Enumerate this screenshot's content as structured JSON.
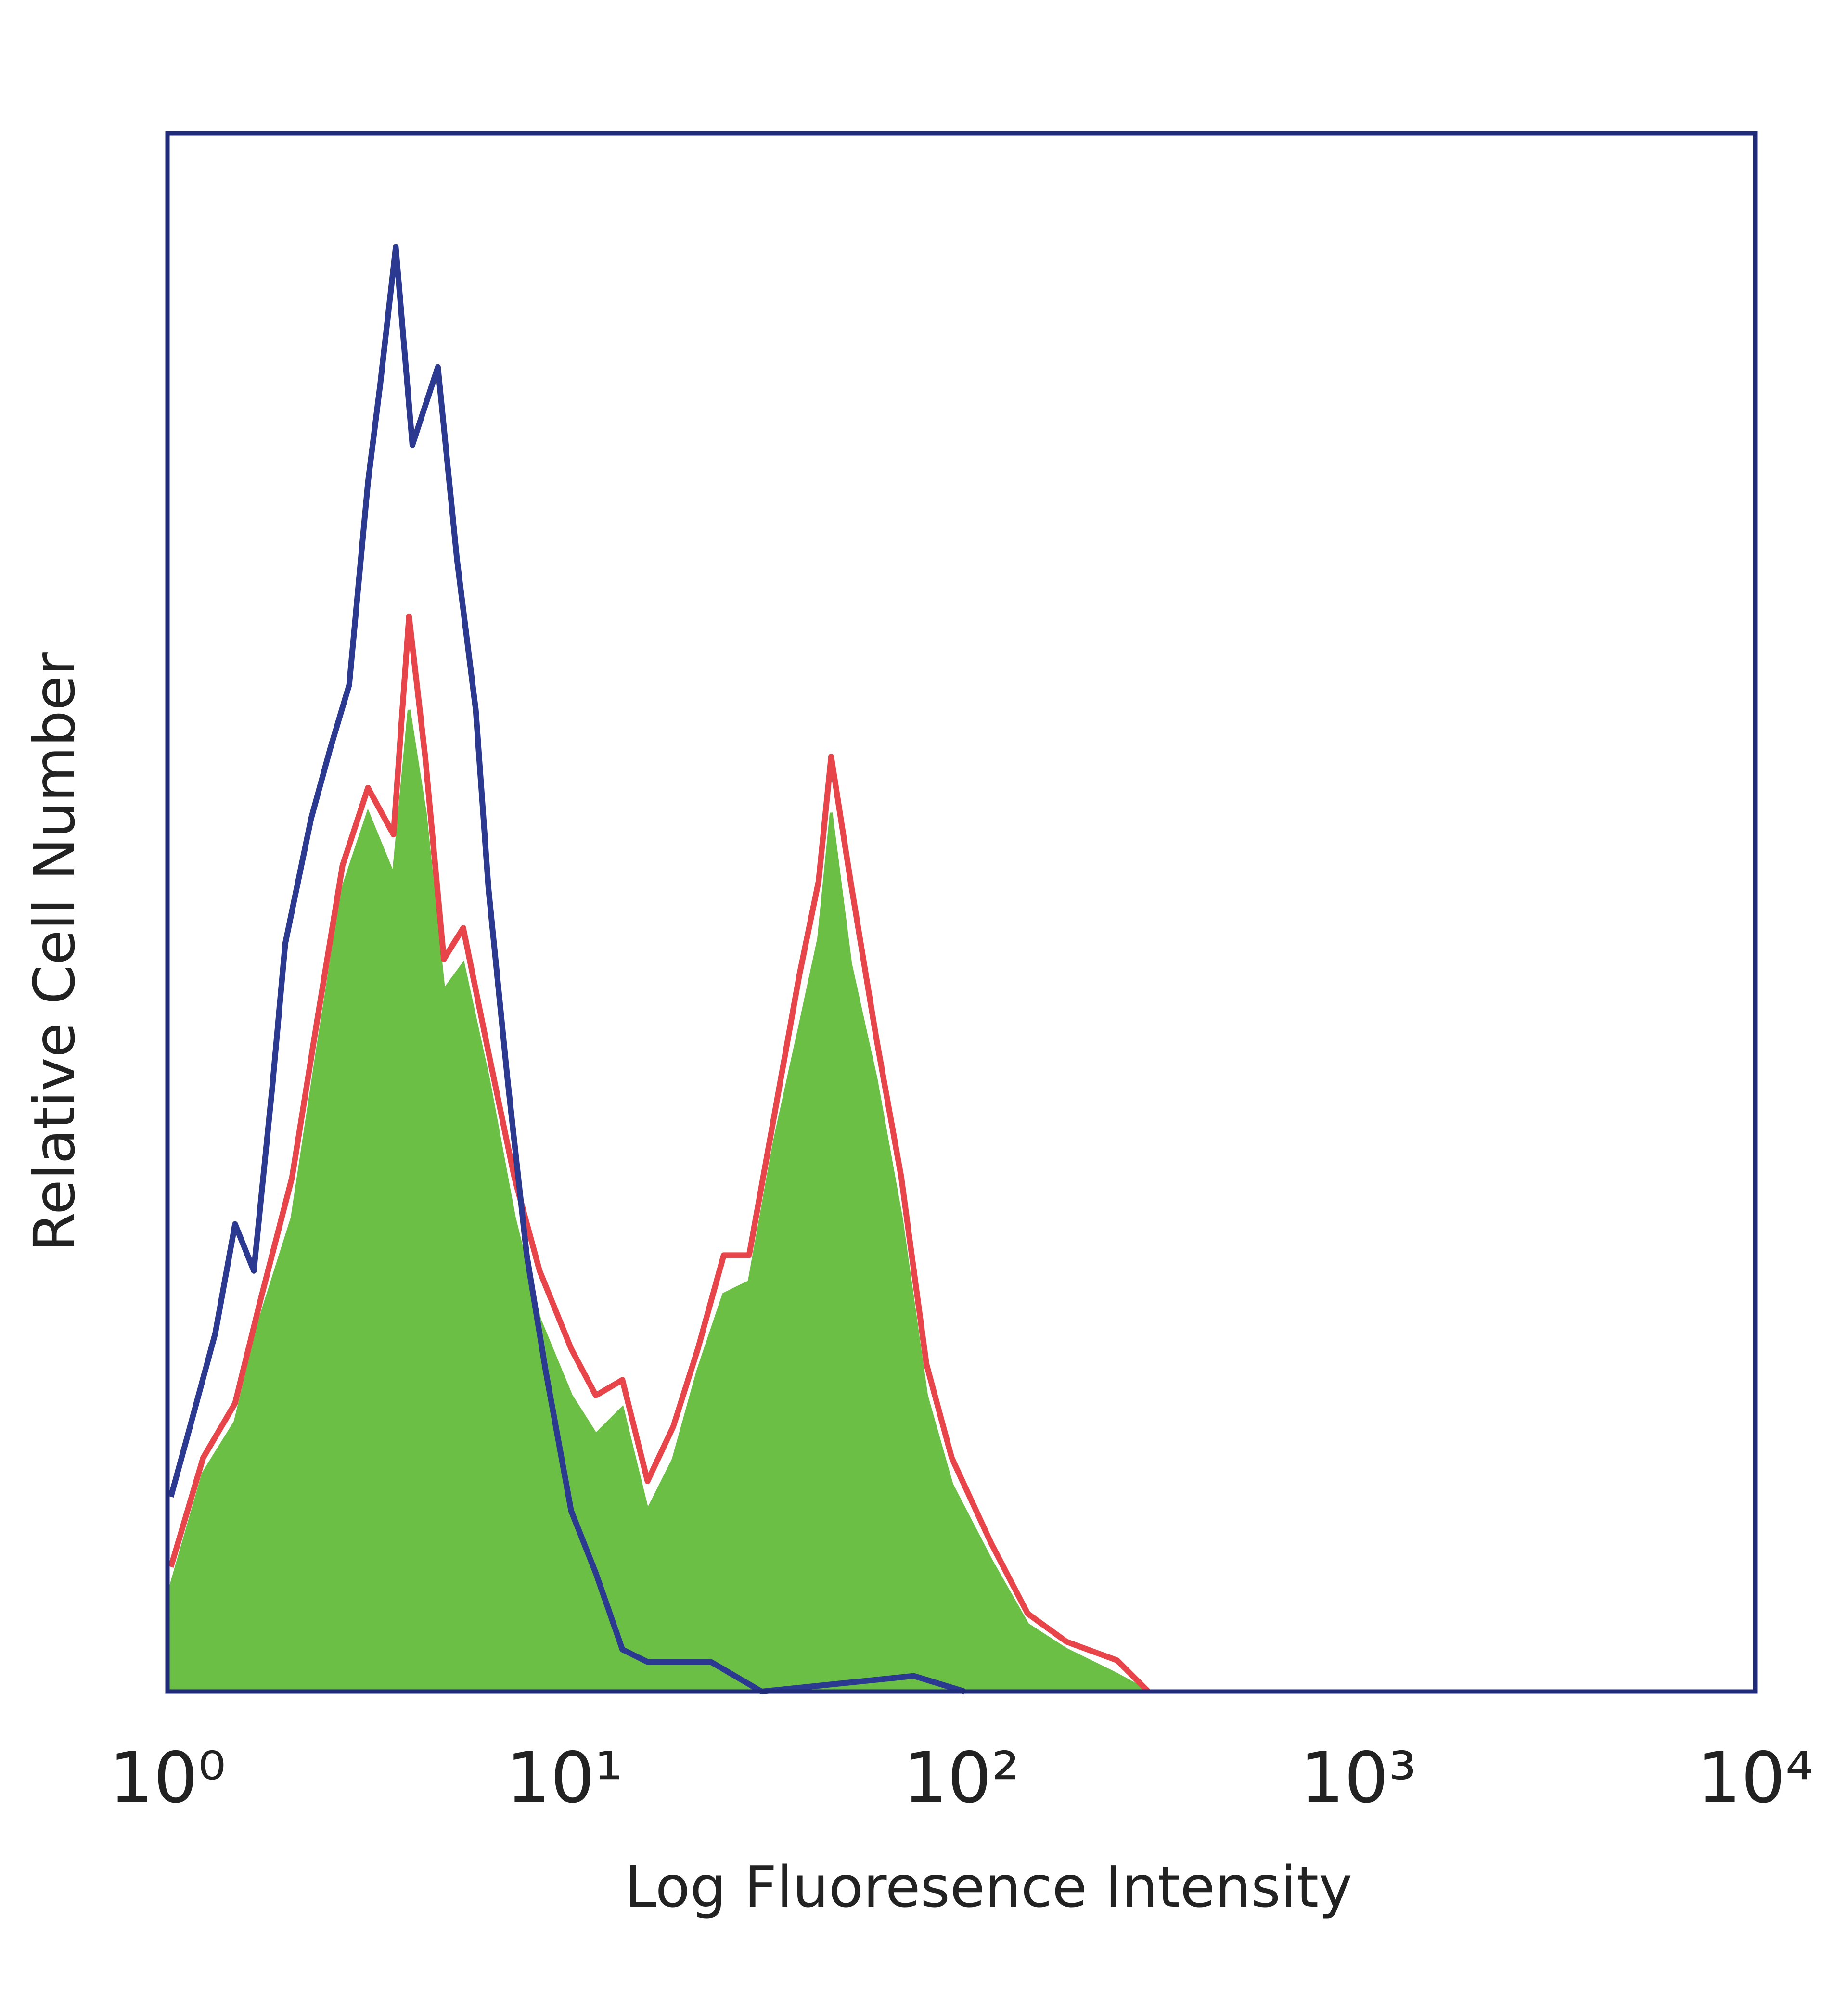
{
  "chart_data": {
    "type": "line",
    "x_label": "Log Fluoresence Intensity",
    "y_label": "Relative Cell Number",
    "xscale": "log",
    "xlim": [
      1,
      10000
    ],
    "xticks": [
      {
        "value": 1,
        "label": "10⁰"
      },
      {
        "value": 10,
        "label": "10¹"
      },
      {
        "value": 100,
        "label": "10²"
      },
      {
        "value": 1000,
        "label": "10³"
      },
      {
        "value": 10000,
        "label": "10⁴"
      }
    ],
    "ylim": [
      0,
      100
    ],
    "frame_color": "#1f2a78",
    "series": [
      {
        "color": "#6bbf44",
        "fill": true,
        "x": [
          1.02,
          1.23,
          1.48,
          1.71,
          2.06,
          2.38,
          2.76,
          3.2,
          3.71,
          4.06,
          4.46,
          4.97,
          5.56,
          6.44,
          7.48,
          8.66,
          10.4,
          12.0,
          14.0,
          16.2,
          18.8,
          21.7,
          25.2,
          29.2,
          33.8,
          39.1,
          43.7,
          47.0,
          52.6,
          61.0,
          70.6,
          81.7,
          94.6,
          119,
          147,
          184,
          247,
          296
        ],
        "values": [
          6.8,
          14,
          17.3,
          23.9,
          30.4,
          41,
          51.5,
          56.4,
          52.4,
          63,
          56.4,
          45,
          46.7,
          39.3,
          30.4,
          23.9,
          19,
          16.5,
          18.2,
          11.6,
          14.9,
          20.6,
          25.5,
          26.3,
          35.3,
          42.6,
          48.3,
          56.4,
          46.7,
          39.3,
          30.4,
          19,
          13.3,
          8.4,
          4.3,
          2.7,
          1.1,
          0
        ]
      },
      {
        "color": "#e8454a",
        "fill": false,
        "x": [
          1.02,
          1.23,
          1.48,
          1.71,
          2.06,
          2.38,
          2.76,
          3.2,
          3.71,
          4.06,
          4.46,
          4.97,
          5.56,
          6.44,
          7.48,
          8.66,
          10.4,
          12.0,
          14.0,
          16.2,
          18.8,
          21.7,
          25.2,
          29.2,
          33.8,
          39.1,
          43.7,
          47.0,
          52.6,
          61.0,
          70.6,
          81.7,
          94.6,
          119,
          147,
          184,
          247,
          296
        ],
        "values": [
          8,
          15,
          18.5,
          25,
          33,
          43,
          53,
          58,
          55,
          69,
          60,
          47,
          49,
          41,
          33,
          27,
          22,
          19,
          20,
          13.5,
          17,
          22,
          28,
          28,
          37,
          46,
          52,
          60,
          52,
          42,
          33,
          21,
          15,
          9.5,
          5,
          3.2,
          2,
          0
        ]
      },
      {
        "color": "#2b3990",
        "fill": false,
        "x": [
          1.02,
          1.14,
          1.32,
          1.48,
          1.65,
          1.84,
          1.98,
          2.3,
          2.57,
          2.87,
          3.2,
          3.44,
          3.76,
          4.14,
          4.8,
          5.36,
          5.98,
          6.44,
          7.19,
          8.04,
          8.97,
          10.4,
          12.0,
          14.0,
          16.2,
          23.4,
          31.4,
          75.9,
          102
        ],
        "values": [
          12.5,
          17,
          23,
          30,
          27,
          39,
          48,
          56,
          60.5,
          64.6,
          77.6,
          84,
          92.7,
          80,
          85,
          72.7,
          63,
          51.5,
          39.3,
          28,
          20.6,
          11.6,
          7.6,
          2.7,
          1.9,
          1.9,
          0,
          1,
          0
        ]
      }
    ]
  }
}
